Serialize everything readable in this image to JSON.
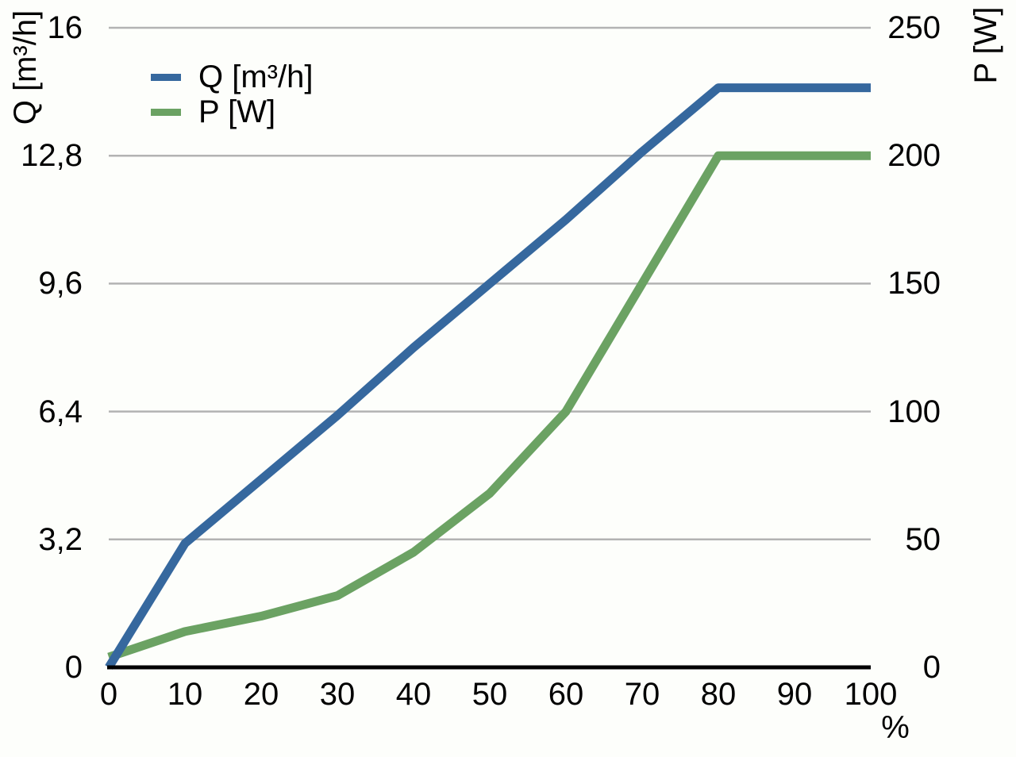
{
  "chart_data": {
    "type": "line",
    "title": "",
    "x": [
      0,
      10,
      20,
      30,
      40,
      50,
      60,
      70,
      80,
      90,
      100
    ],
    "x_axis": {
      "unit": "%",
      "min": 0,
      "max": 100,
      "ticks": [
        {
          "label": "0",
          "value": 0
        },
        {
          "label": "10",
          "value": 10
        },
        {
          "label": "20",
          "value": 20
        },
        {
          "label": "30",
          "value": 30
        },
        {
          "label": "40",
          "value": 40
        },
        {
          "label": "50",
          "value": 50
        },
        {
          "label": "60",
          "value": 60
        },
        {
          "label": "70",
          "value": 70
        },
        {
          "label": "80",
          "value": 80
        },
        {
          "label": "90",
          "value": 90
        },
        {
          "label": "100",
          "value": 100
        }
      ]
    },
    "left_axis": {
      "label": "Q [m³/h]",
      "min": 0,
      "max": 16,
      "ticks": [
        {
          "label": "0",
          "value": 0
        },
        {
          "label": "3,2",
          "value": 3.2
        },
        {
          "label": "6,4",
          "value": 6.4
        },
        {
          "label": "9,6",
          "value": 9.6
        },
        {
          "label": "12,8",
          "value": 12.8
        },
        {
          "label": "16",
          "value": 16
        }
      ]
    },
    "right_axis": {
      "label": "P [W]",
      "min": 0,
      "max": 250,
      "ticks": [
        {
          "label": "0",
          "value": 0
        },
        {
          "label": "50",
          "value": 50
        },
        {
          "label": "100",
          "value": 100
        },
        {
          "label": "150",
          "value": 150
        },
        {
          "label": "200",
          "value": 200
        },
        {
          "label": "250",
          "value": 250
        }
      ]
    },
    "series": [
      {
        "name": "Q [m³/h]",
        "axis": "left",
        "color": "#36689E",
        "values": [
          0,
          3.1,
          4.7,
          6.3,
          8.0,
          9.6,
          11.2,
          12.9,
          14.5,
          14.5,
          14.5
        ]
      },
      {
        "name": "P [W]",
        "axis": "right",
        "color": "#6BA263",
        "values": [
          4,
          14,
          20,
          28,
          45,
          68,
          100,
          150,
          200,
          200,
          200
        ]
      }
    ],
    "grid": "horizontal",
    "grid_color": "#B3B3B3",
    "axis_color": "#000000",
    "legend_position": "top-left"
  },
  "legend": {
    "items": [
      {
        "label": "Q [m³/h]",
        "color": "#36689E"
      },
      {
        "label": "P [W]",
        "color": "#6BA263"
      }
    ]
  }
}
